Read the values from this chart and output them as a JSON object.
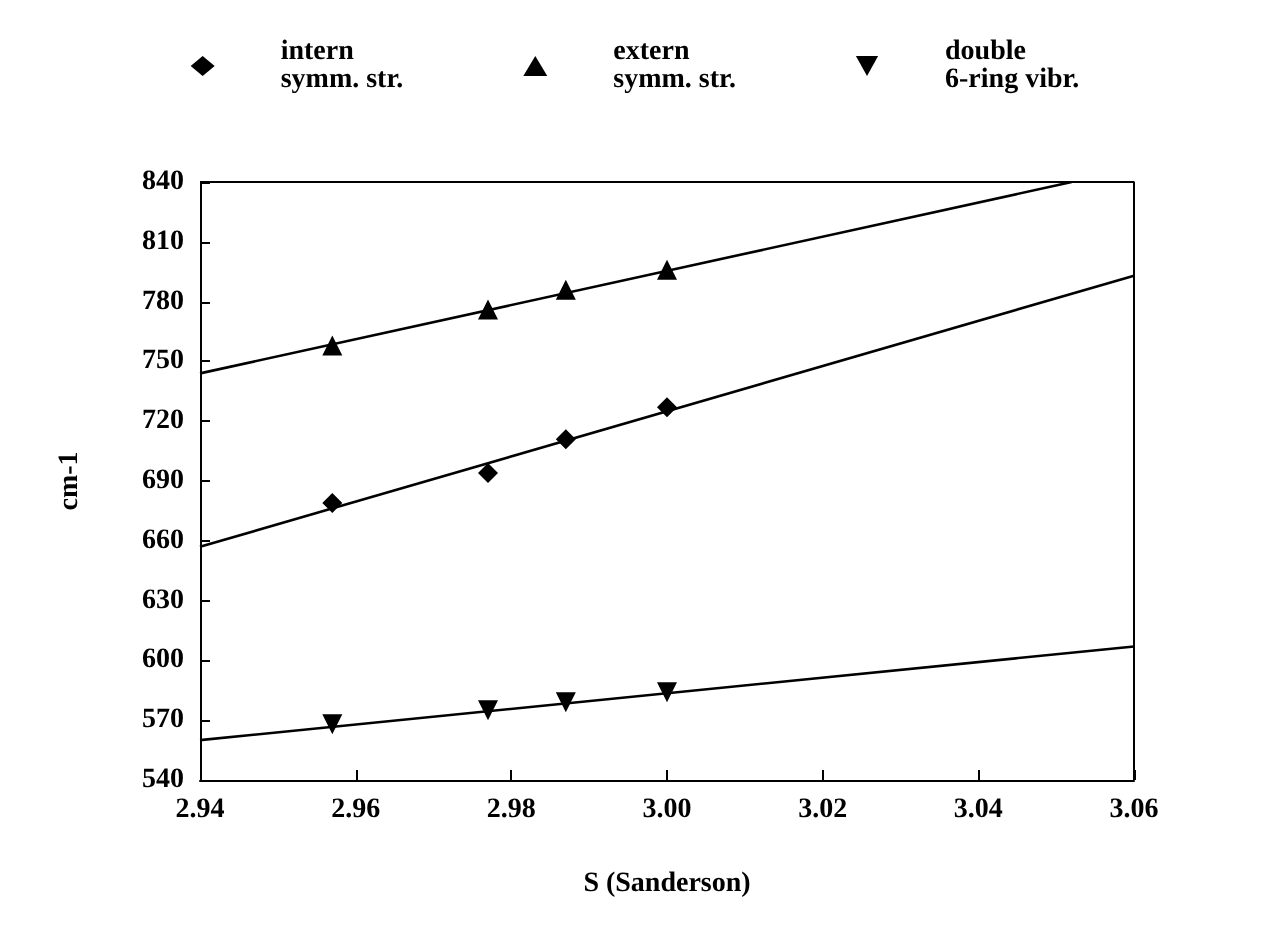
{
  "chart_data": {
    "type": "scatter",
    "xlabel": "S (Sanderson)",
    "ylabel": "cm-1",
    "xlim": [
      2.94,
      3.06
    ],
    "xticks": [
      {
        "value": 2.94,
        "label": "2.94"
      },
      {
        "value": 2.96,
        "label": "2.96"
      },
      {
        "value": 2.98,
        "label": "2.98"
      },
      {
        "value": 3.0,
        "label": "3.00"
      },
      {
        "value": 3.02,
        "label": "3.02"
      },
      {
        "value": 3.04,
        "label": "3.04"
      },
      {
        "value": 3.06,
        "label": "3.06"
      }
    ],
    "ylim": [
      540,
      840
    ],
    "yticks": [
      540,
      570,
      600,
      630,
      660,
      690,
      720,
      750,
      780,
      810,
      840
    ],
    "grid": false,
    "legend": "top",
    "series": [
      {
        "name": "intern symm. str.",
        "color": "#000000",
        "marker": "diamond",
        "x": [
          2.957,
          2.977,
          2.987,
          3.0
        ],
        "values": [
          679,
          694,
          711,
          727
        ]
      },
      {
        "name": "extern symm. str.",
        "color": "#000000",
        "marker": "triangle",
        "x": [
          2.957,
          2.977,
          2.987,
          3.0
        ],
        "values": [
          758,
          776,
          786,
          796
        ]
      },
      {
        "name": "double 6-ring vibr.",
        "color": "#000000",
        "marker": "triangle-down",
        "x": [
          2.957,
          2.977,
          2.987,
          3.0
        ],
        "values": [
          568,
          575,
          579,
          584
        ]
      },
      {
        "type": "line",
        "color": "#000000",
        "marker": "none",
        "x": [
          2.94,
          3.06
        ],
        "values": [
          657,
          793
        ]
      },
      {
        "type": "line",
        "color": "#000000",
        "marker": "none",
        "x": [
          2.94,
          3.052
        ],
        "values": [
          744,
          840
        ]
      },
      {
        "type": "line",
        "color": "#000000",
        "marker": "none",
        "x": [
          2.94,
          3.06
        ],
        "values": [
          560,
          607
        ]
      }
    ]
  }
}
